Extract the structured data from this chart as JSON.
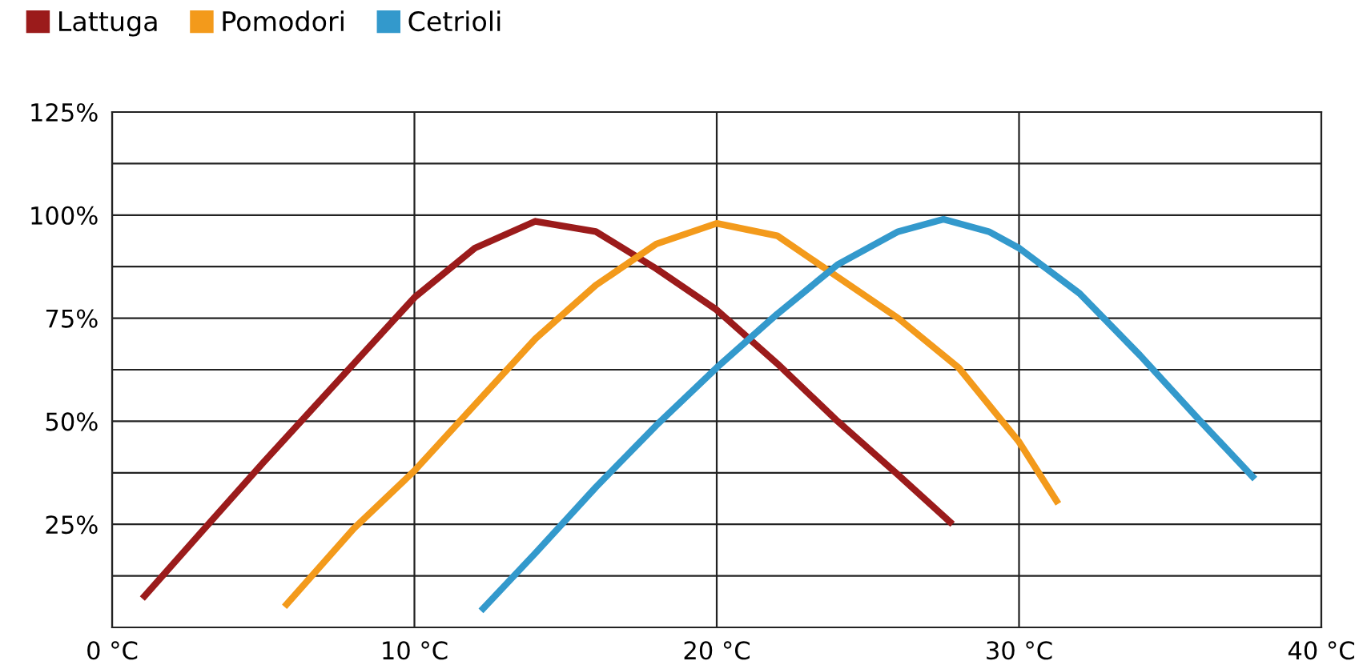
{
  "chart_data": {
    "type": "line",
    "series": [
      {
        "name": "Lattuga",
        "color": "#9b1b1b",
        "x": [
          1,
          5,
          8,
          10,
          12,
          14,
          16,
          18,
          20,
          22,
          24,
          26,
          27.8
        ],
        "values": [
          7,
          40,
          64,
          80,
          92,
          98.5,
          96,
          87,
          77,
          64,
          50,
          37,
          25
        ]
      },
      {
        "name": "Pomodori",
        "color": "#f39a1b",
        "x": [
          5.7,
          8,
          10,
          12,
          14,
          16,
          18,
          20,
          22,
          24,
          26,
          28,
          30,
          31.3
        ],
        "values": [
          5,
          24,
          38,
          54,
          70,
          83,
          93,
          98,
          95,
          85,
          75,
          63,
          45,
          30
        ]
      },
      {
        "name": "Cetrioli",
        "color": "#3399cc",
        "x": [
          12.2,
          14,
          16,
          18,
          20,
          22,
          24,
          26,
          27.5,
          29,
          30,
          32,
          34,
          36,
          37.8
        ],
        "values": [
          4,
          18,
          34,
          49,
          63,
          76,
          88,
          96,
          99,
          96,
          92,
          81,
          66,
          50,
          36
        ]
      }
    ],
    "xlim": [
      0,
      40
    ],
    "xticks": [
      {
        "value": 0,
        "label": "0 °C"
      },
      {
        "value": 10,
        "label": "10 °C"
      },
      {
        "value": 20,
        "label": "20 °C"
      },
      {
        "value": 30,
        "label": "30 °C"
      },
      {
        "value": 40,
        "label": "40 °C"
      }
    ],
    "ylim": [
      0,
      125
    ],
    "yticks": [
      {
        "value": 12.5,
        "label": null
      },
      {
        "value": 25,
        "label": "25%"
      },
      {
        "value": 37.5,
        "label": null
      },
      {
        "value": 50,
        "label": "50%"
      },
      {
        "value": 62.5,
        "label": null
      },
      {
        "value": 75,
        "label": "75%"
      },
      {
        "value": 87.5,
        "label": null
      },
      {
        "value": 100,
        "label": "100%"
      },
      {
        "value": 112.5,
        "label": null
      },
      {
        "value": 125,
        "label": "125%"
      }
    ],
    "grid": true,
    "legend": "top left"
  }
}
